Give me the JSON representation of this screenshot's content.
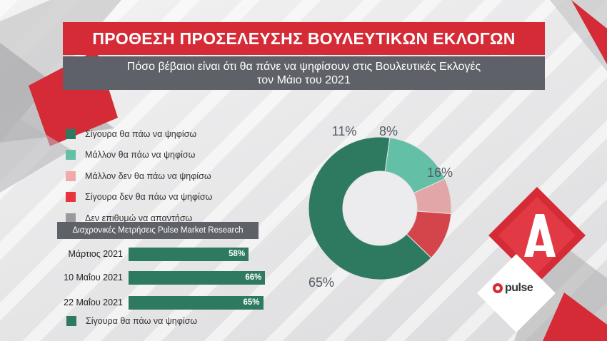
{
  "header": {
    "title": "ΠΡΟΘΕΣΗ ΠΡΟΣΕΛΕΥΣΗΣ ΒΟΥΛΕΥΤΙΚΩΝ ΕΚΛΟΓΩΝ",
    "subtitle_line1": "Πόσο βέβαιοι είναι ότι θα πάνε να ψηφίσουν στις Βουλευτικές Εκλογές",
    "subtitle_line2": "τον Μάιο του 2021"
  },
  "legend": [
    {
      "label": "Σίγουρα θα πάω να ψηφίσω",
      "color": "#2e7a61"
    },
    {
      "label": "Μάλλον θα πάω να ψηφίσω",
      "color": "#63c0a7"
    },
    {
      "label": "Μάλλον δεν θα πάω να ψηφίσω",
      "color": "#f1a9aa"
    },
    {
      "label": "Σίγουρα δεν θα πάω να ψηφίσω",
      "color": "#e8343d"
    },
    {
      "label": "Δεν επιθυμώ να απαντήσω",
      "color": "#9a9a9e"
    }
  ],
  "tracking": {
    "title": "Διαχρονικές Μετρήσεις Pulse Market Research",
    "legend_label": "Σίγουρα θα πάω να ψηφίσω",
    "legend_color": "#2e7a61"
  },
  "logos": {
    "pulse": "pulse",
    "alpha": "alpha-logo-icon"
  },
  "chart_data": [
    {
      "type": "pie",
      "donut": true,
      "categories": [
        "Σίγουρα θα πάω να ψηφίσω",
        "Μάλλον θα πάω να ψηφίσω",
        "Μάλλον δεν θα πάω να ψηφίσω",
        "Σίγουρα δεν θα πάω να ψηφίσω",
        "Δεν επιθυμώ να απαντήσω"
      ],
      "values": [
        65,
        16,
        8,
        11,
        0
      ],
      "labels": [
        "65%",
        "16%",
        "8%",
        "11%",
        ""
      ],
      "colors": [
        "#2e7a61",
        "#63c0a7",
        "#e3a6a8",
        "#d4454b",
        "#9a9a9e"
      ]
    },
    {
      "type": "bar",
      "orientation": "horizontal",
      "categories": [
        "Μάρτιος 2021",
        "10 Μαΐου 2021",
        "22 Μαΐου 2021"
      ],
      "values": [
        58,
        66,
        65
      ],
      "labels": [
        "58%",
        "66%",
        "65%"
      ],
      "xlim": [
        0,
        100
      ],
      "color": "#2e7a61"
    }
  ]
}
